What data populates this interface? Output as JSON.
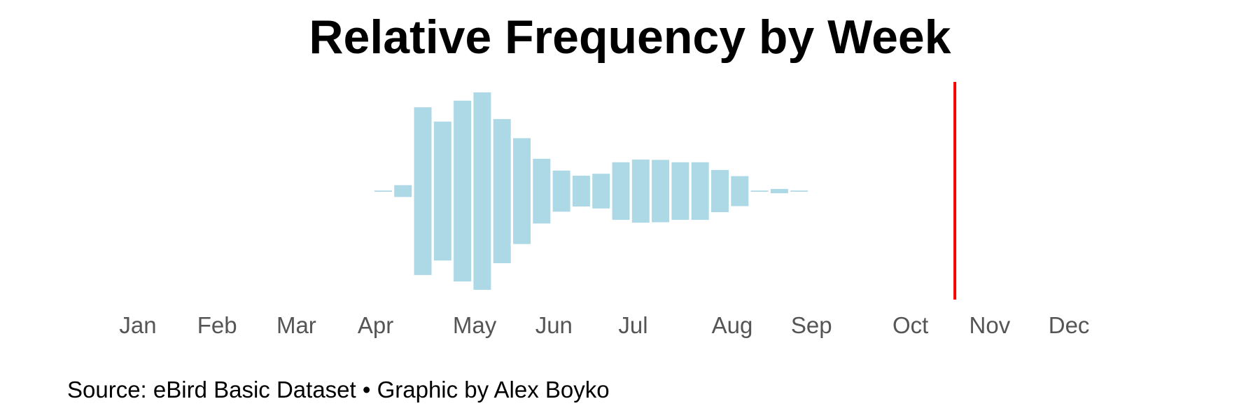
{
  "chart_data": {
    "type": "bar",
    "style": "violin-centered",
    "title": "Relative Frequency by Week",
    "months": [
      "Jan",
      "Feb",
      "Mar",
      "Apr",
      "May",
      "Jun",
      "Jul",
      "Aug",
      "Sep",
      "Oct",
      "Nov",
      "Dec"
    ],
    "month_week_index": [
      0,
      4,
      8,
      12,
      17,
      21,
      25,
      30,
      34,
      39,
      43,
      47
    ],
    "weeks_total": 48,
    "values": [
      0,
      0,
      0,
      0,
      0,
      0,
      0,
      0,
      0,
      0,
      0,
      0,
      0,
      0.3,
      3.0,
      42.5,
      35.2,
      45.8,
      50.0,
      36.5,
      26.8,
      16.4,
      10.4,
      7.8,
      8.8,
      14.6,
      16.0,
      15.8,
      14.6,
      14.6,
      10.7,
      7.6,
      0.3,
      1.1,
      0.3,
      0,
      0,
      0,
      0,
      0,
      0,
      0,
      0,
      0,
      0,
      0,
      0,
      0
    ],
    "bar_color": "#add8e6",
    "marker": {
      "week": 42.3,
      "color": "#ff0000"
    },
    "xlabel": "",
    "ylabel": "",
    "grid": false
  },
  "caption": "Source: eBird Basic Dataset • Graphic by Alex Boyko"
}
